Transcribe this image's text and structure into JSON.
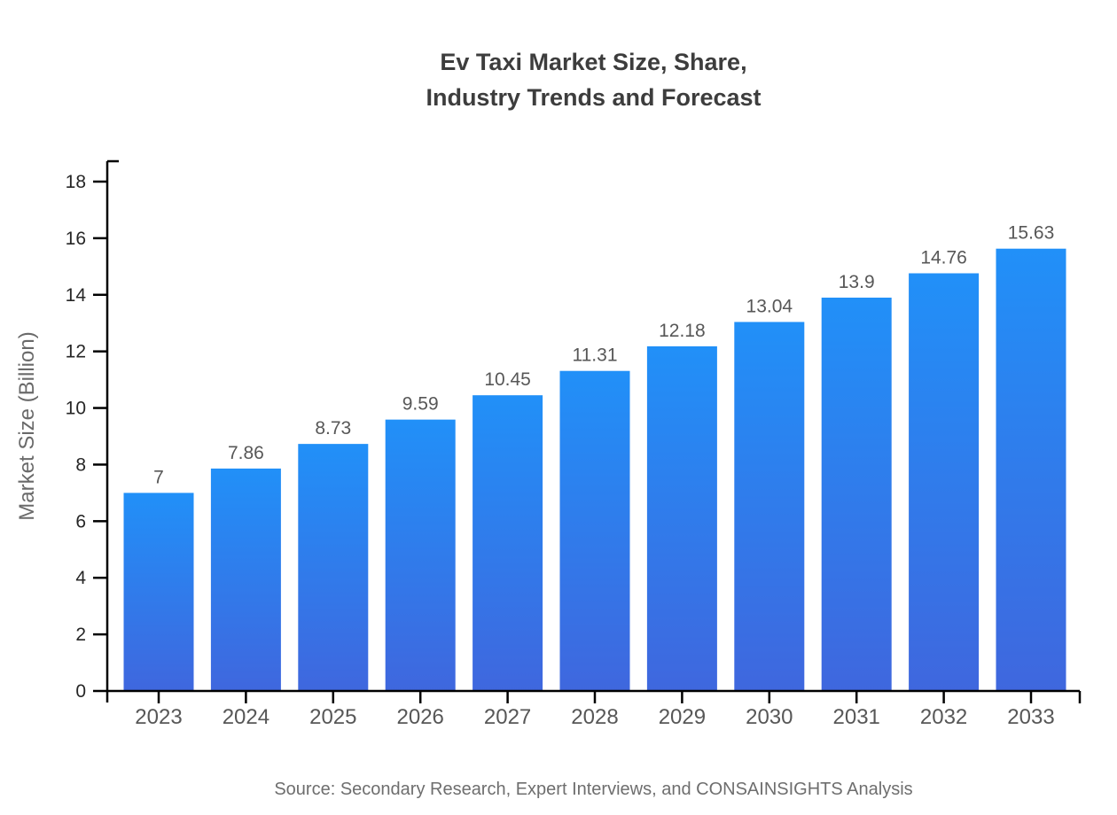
{
  "title": {
    "line1": "Ev Taxi Market Size, Share,",
    "line2": "Industry Trends and Forecast"
  },
  "source": "Source: Secondary Research, Expert Interviews, and CONSAINSIGHTS Analysis",
  "chart_data": {
    "type": "bar",
    "title": "Ev Taxi Market Size, Share, Industry Trends and Forecast",
    "categories": [
      "2023",
      "2024",
      "2025",
      "2026",
      "2027",
      "2028",
      "2029",
      "2030",
      "2031",
      "2032",
      "2033"
    ],
    "values": [
      7,
      7.86,
      8.73,
      9.59,
      10.45,
      11.31,
      12.18,
      13.04,
      13.9,
      14.76,
      15.63
    ],
    "value_labels": [
      "7",
      "7.86",
      "8.73",
      "9.59",
      "10.45",
      "11.31",
      "12.18",
      "13.04",
      "13.9",
      "14.76",
      "15.63"
    ],
    "xlabel": "",
    "ylabel": "Market Size (Billion)",
    "ylim": [
      0,
      18.72
    ],
    "yticks": [
      0,
      2,
      4,
      6,
      8,
      10,
      12,
      14,
      16,
      18
    ],
    "grid": false,
    "legend": null,
    "bar_color_top": "#2190f8",
    "bar_color_bottom": "#3f67de"
  }
}
